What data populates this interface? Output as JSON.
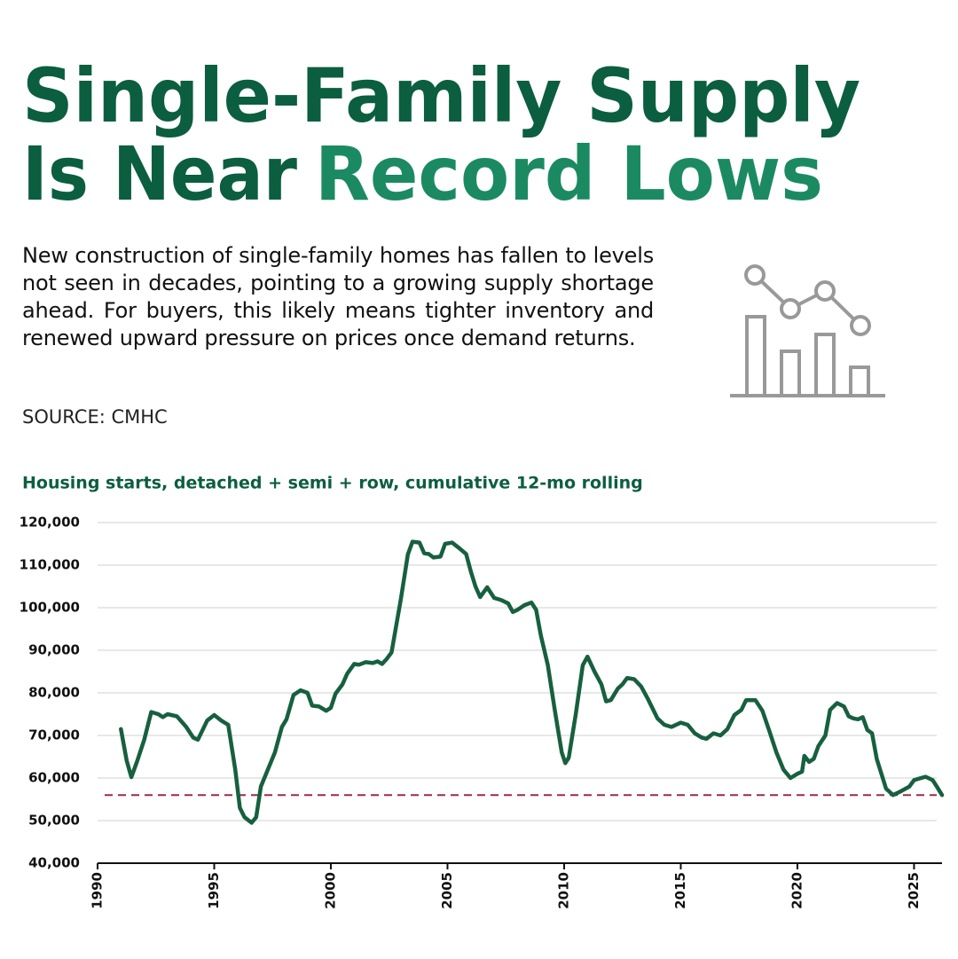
{
  "header": {
    "title_line1": "Single-Family Supply",
    "title_line2a": "Is Near",
    "title_line2b": "Record Lows",
    "description": "New construction of single-family homes has fallen to levels not seen in decades, pointing to a growing supply shortage ahead. For buyers, this likely means tighter inventory and renewed upward pressure on prices once demand returns.",
    "source": "SOURCE: CMHC"
  },
  "chart_data": {
    "type": "line",
    "title": "Housing starts, detached + semi + row, cumulative 12-mo rolling",
    "color": "#17603f",
    "grid": true,
    "reference_line": 56000,
    "reference_color": "#9b2c43",
    "xlim": [
      1990,
      2026.2
    ],
    "xticks": [
      1990,
      1995,
      2000,
      2005,
      2010,
      2015,
      2020,
      2025
    ],
    "ylim": [
      40000,
      120000
    ],
    "yticks": [
      {
        "value": 40000,
        "label": "40,000"
      },
      {
        "value": 50000,
        "label": "50,000"
      },
      {
        "value": 60000,
        "label": "60,000"
      },
      {
        "value": 70000,
        "label": "70,000"
      },
      {
        "value": 80000,
        "label": "80,000"
      },
      {
        "value": 90000,
        "label": "90,000"
      },
      {
        "value": 100000,
        "label": "100,000"
      },
      {
        "value": 110000,
        "label": "110,000"
      },
      {
        "value": 120000,
        "label": "120,000"
      }
    ],
    "x": [
      1991.0,
      1991.25,
      1991.45,
      1991.7,
      1992.0,
      1992.3,
      1992.6,
      1992.8,
      1993.0,
      1993.4,
      1993.8,
      1994.1,
      1994.3,
      1994.7,
      1995.0,
      1995.3,
      1995.6,
      1995.9,
      1996.1,
      1996.3,
      1996.6,
      1996.8,
      1997.0,
      1997.3,
      1997.6,
      1997.9,
      1998.1,
      1998.4,
      1998.7,
      1999.0,
      1999.2,
      1999.5,
      1999.8,
      2000.0,
      2000.2,
      2000.5,
      2000.7,
      2001.0,
      2001.2,
      2001.5,
      2001.8,
      2002.0,
      2002.2,
      2002.4,
      2002.6,
      2003.0,
      2003.3,
      2003.5,
      2003.8,
      2004.0,
      2004.2,
      2004.4,
      2004.7,
      2004.9,
      2005.2,
      2005.5,
      2005.8,
      2006.0,
      2006.2,
      2006.4,
      2006.7,
      2007.0,
      2007.3,
      2007.6,
      2007.8,
      2008.0,
      2008.3,
      2008.6,
      2008.8,
      2009.0,
      2009.3,
      2009.6,
      2009.9,
      2010.05,
      2010.2,
      2010.5,
      2010.8,
      2011.0,
      2011.3,
      2011.6,
      2011.8,
      2012.0,
      2012.3,
      2012.5,
      2012.7,
      2013.0,
      2013.3,
      2013.6,
      2014.0,
      2014.3,
      2014.6,
      2015.0,
      2015.3,
      2015.6,
      2015.9,
      2016.1,
      2016.4,
      2016.7,
      2017.0,
      2017.3,
      2017.6,
      2017.8,
      2018.2,
      2018.5,
      2018.8,
      2019.1,
      2019.4,
      2019.7,
      2020.0,
      2020.2,
      2020.3,
      2020.5,
      2020.7,
      2020.9,
      2021.2,
      2021.4,
      2021.7,
      2022.0,
      2022.2,
      2022.4,
      2022.6,
      2022.8,
      2023.0,
      2023.2,
      2023.4,
      2023.8,
      2024.1,
      2024.4,
      2024.8,
      2025.0,
      2025.3,
      2025.5,
      2025.8,
      2026.0,
      2026.2
    ],
    "values": [
      71500,
      64000,
      60200,
      64000,
      69000,
      75500,
      75000,
      74300,
      75000,
      74500,
      72000,
      69500,
      69000,
      73500,
      74800,
      73500,
      72500,
      62000,
      53000,
      50800,
      49500,
      50800,
      58000,
      62000,
      66000,
      72000,
      73800,
      79500,
      80600,
      80000,
      77000,
      76800,
      75800,
      76500,
      79800,
      82000,
      84500,
      86800,
      86600,
      87200,
      87000,
      87400,
      86800,
      88000,
      89500,
      102000,
      112500,
      115500,
      115300,
      112800,
      112600,
      111800,
      112000,
      115000,
      115300,
      114000,
      112600,
      108500,
      105000,
      102500,
      104800,
      102300,
      101800,
      101000,
      99000,
      99500,
      100600,
      101200,
      99500,
      93500,
      86500,
      76000,
      66000,
      63500,
      64800,
      75000,
      86500,
      88500,
      85000,
      82000,
      78000,
      78300,
      81000,
      82000,
      83500,
      83200,
      81500,
      78500,
      74000,
      72500,
      72000,
      73000,
      72500,
      70500,
      69500,
      69200,
      70500,
      70000,
      71500,
      74800,
      76000,
      78300,
      78300,
      75800,
      71000,
      66000,
      62000,
      60000,
      61000,
      61500,
      65200,
      63800,
      64500,
      67500,
      70000,
      76000,
      77600,
      76800,
      74500,
      74000,
      73800,
      74300,
      71300,
      70500,
      64500,
      57500,
      56000,
      56800,
      58000,
      59500,
      60000,
      60300,
      59500,
      57800,
      56000
    ]
  }
}
